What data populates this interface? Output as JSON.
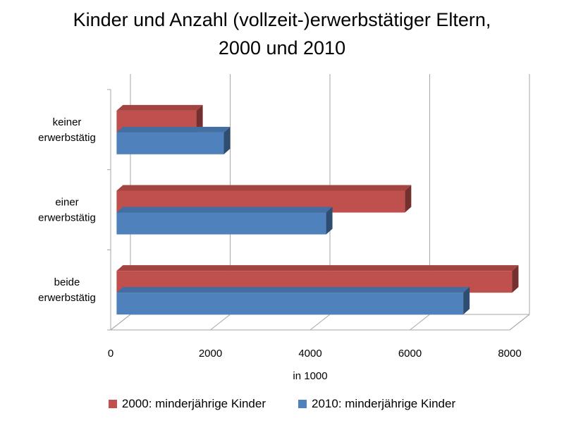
{
  "chart_data": {
    "type": "bar",
    "orientation": "horizontal",
    "title_lines": [
      "Kinder und Anzahl (vollzeit-)erwerbstätiger Eltern,",
      "2000 und 2010"
    ],
    "categories": [
      [
        "keiner",
        "erwerbstätig"
      ],
      [
        "einer",
        "erwerbstätig"
      ],
      [
        "beide",
        "erwerbstätig"
      ]
    ],
    "series": [
      {
        "name": "2000: minderjährige Kinder",
        "color": "#C0504D",
        "values": [
          1600,
          5780,
          7930
        ]
      },
      {
        "name": "2010: minderjährige Kinder",
        "color": "#4F81BD",
        "values": [
          2150,
          4200,
          6950
        ]
      }
    ],
    "xlabel": "in 1000",
    "xlim": [
      0,
      8000
    ],
    "xticks": [
      "0",
      "2000",
      "4000",
      "6000",
      "8000"
    ],
    "grid": true,
    "legend_position": "bottom",
    "style": "3d"
  }
}
